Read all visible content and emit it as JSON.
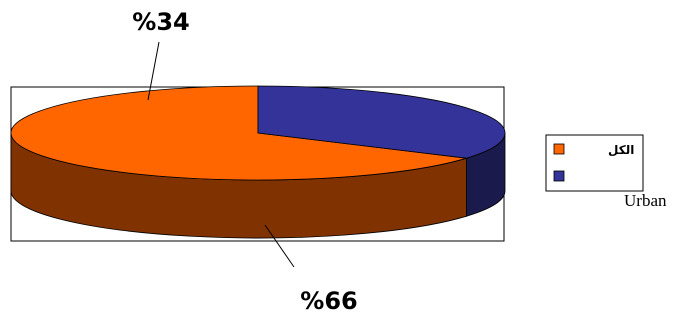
{
  "chart_data": {
    "type": "pie",
    "style": "3d",
    "slices": [
      {
        "label": "الكل",
        "value": 66,
        "value_label": "%66",
        "color": "#FF6600",
        "side_color": "#803300"
      },
      {
        "label": "",
        "value": 34,
        "value_label": "%34",
        "color": "#333399",
        "side_color": "#1A1A4D"
      }
    ],
    "legend": {
      "placement": "right",
      "items": [
        {
          "label": "الكل",
          "color": "#FF6600"
        },
        {
          "label": "",
          "color": "#333399"
        }
      ]
    },
    "outside_text": "Urban"
  }
}
